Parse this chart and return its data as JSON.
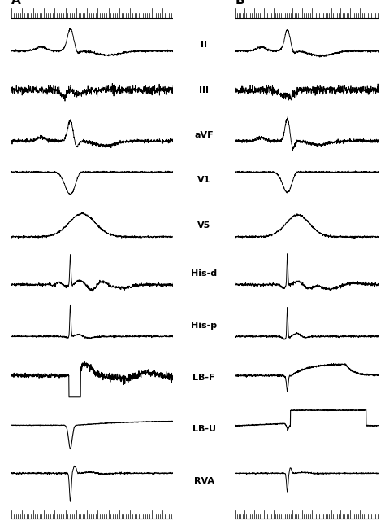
{
  "panel_A_label": "A",
  "panel_B_label": "B",
  "channel_labels": [
    "II",
    "III",
    "aVF",
    "V1",
    "V5",
    "His-d",
    "His-p",
    "LB-F",
    "LB-U",
    "RVA"
  ],
  "background_color": "#ffffff",
  "trace_color": "#000000",
  "label_fontsize": 8,
  "panel_label_fontsize": 11,
  "fig_width": 4.74,
  "fig_height": 6.4,
  "dpi": 100
}
